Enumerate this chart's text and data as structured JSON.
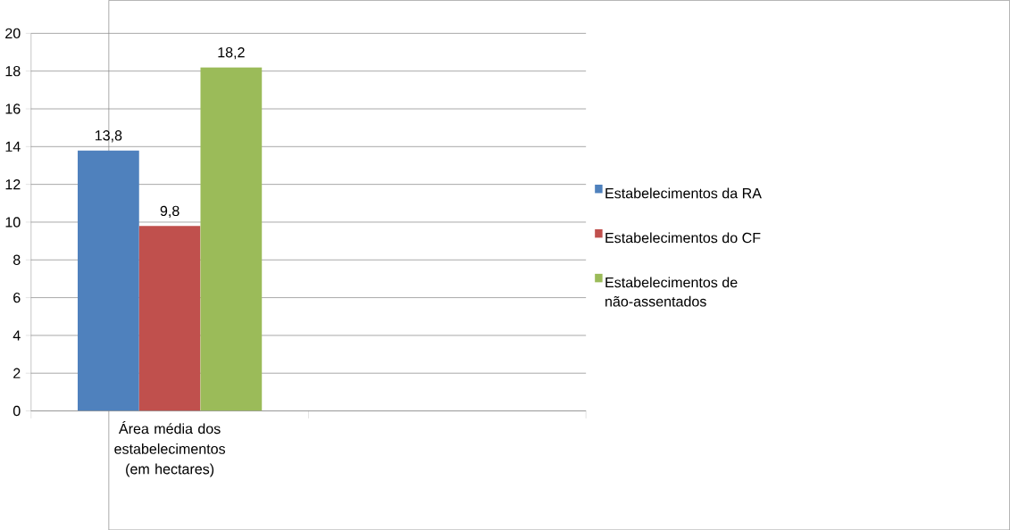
{
  "chart_data": {
    "type": "bar",
    "categories": [
      "Área média dos estabelecimentos (em hectares)",
      null
    ],
    "series": [
      {
        "name": "Estabelecimentos da RA",
        "color": "#4f81bd",
        "values": [
          13.8,
          null
        ],
        "value_labels": [
          "13,8",
          null
        ]
      },
      {
        "name": "Estabelecimentos do CF",
        "color": "#c0504d",
        "values": [
          9.8,
          null
        ],
        "value_labels": [
          "9,8",
          null
        ]
      },
      {
        "name": "Estabelecimentos de não-assentados",
        "color": "#9bbb59",
        "values": [
          18.2,
          null
        ],
        "value_labels": [
          "18,2",
          null
        ]
      }
    ],
    "ylim": [
      0,
      20
    ],
    "yticks": [
      0,
      2,
      4,
      6,
      8,
      10,
      12,
      14,
      16,
      18,
      20
    ],
    "grid": "y",
    "legend": "right"
  }
}
